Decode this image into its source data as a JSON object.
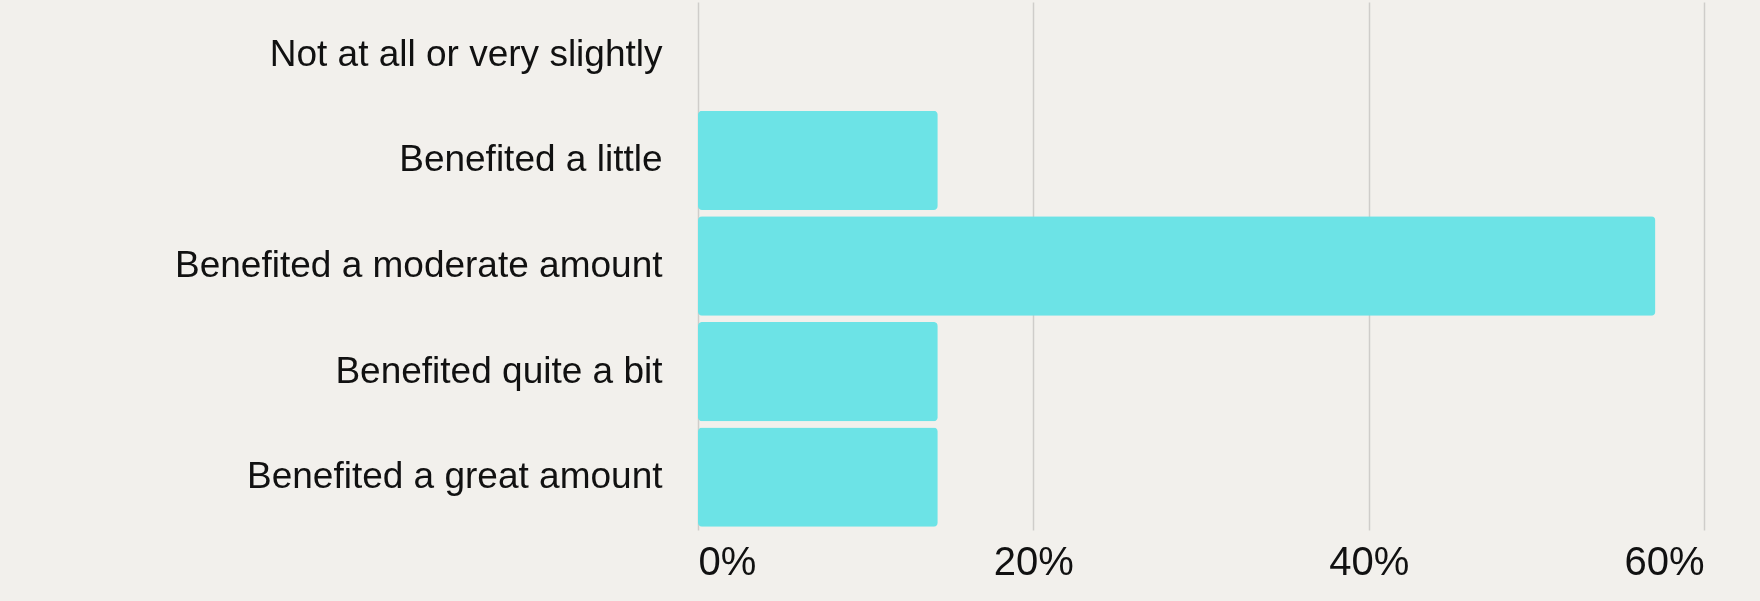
{
  "chart_data": {
    "type": "bar",
    "orientation": "horizontal",
    "categories": [
      "Not at all or very slightly",
      "Benefited a little",
      "Benefited a moderate amount",
      "Benefited quite a bit",
      "Benefited a great amount"
    ],
    "values": [
      0,
      14.3,
      57.1,
      14.3,
      14.3
    ],
    "color": "#6ce3e6",
    "xlim": [
      0,
      60
    ],
    "xticks": [
      {
        "value": 0,
        "label": "0%"
      },
      {
        "value": 20,
        "label": "20%"
      },
      {
        "value": 40,
        "label": "40%"
      },
      {
        "value": 60,
        "label": "60%"
      }
    ],
    "grid": "x"
  }
}
